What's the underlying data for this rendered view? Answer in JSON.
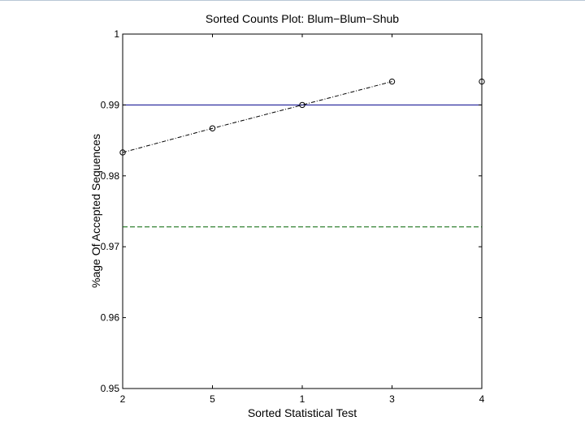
{
  "chart_data": {
    "type": "line",
    "title": "Sorted Counts Plot:  Blum−Blum−Shub",
    "xlabel": "Sorted Statistical Test",
    "ylabel": "%age Of Accepted Sequences",
    "categories": [
      "2",
      "5",
      "1",
      "3",
      "4"
    ],
    "ylim": [
      0.95,
      1
    ],
    "yticks": [
      0.95,
      0.96,
      0.97,
      0.98,
      0.99,
      1
    ],
    "ytick_labels": [
      "0.95",
      "0.96",
      "0.97",
      "0.98",
      "0.99",
      "1"
    ],
    "grid": false,
    "series": [
      {
        "values": [
          0.9833,
          0.9867,
          0.99,
          0.9933,
          0.9933
        ],
        "marker": "circle",
        "line_style": "dash-dot",
        "connected_points": 4,
        "color": "#000000"
      }
    ],
    "reference_lines": [
      {
        "y": 0.99,
        "style": "solid",
        "color": "#00008b"
      },
      {
        "y": 0.9728,
        "style": "dashed",
        "color": "#006400"
      }
    ]
  }
}
